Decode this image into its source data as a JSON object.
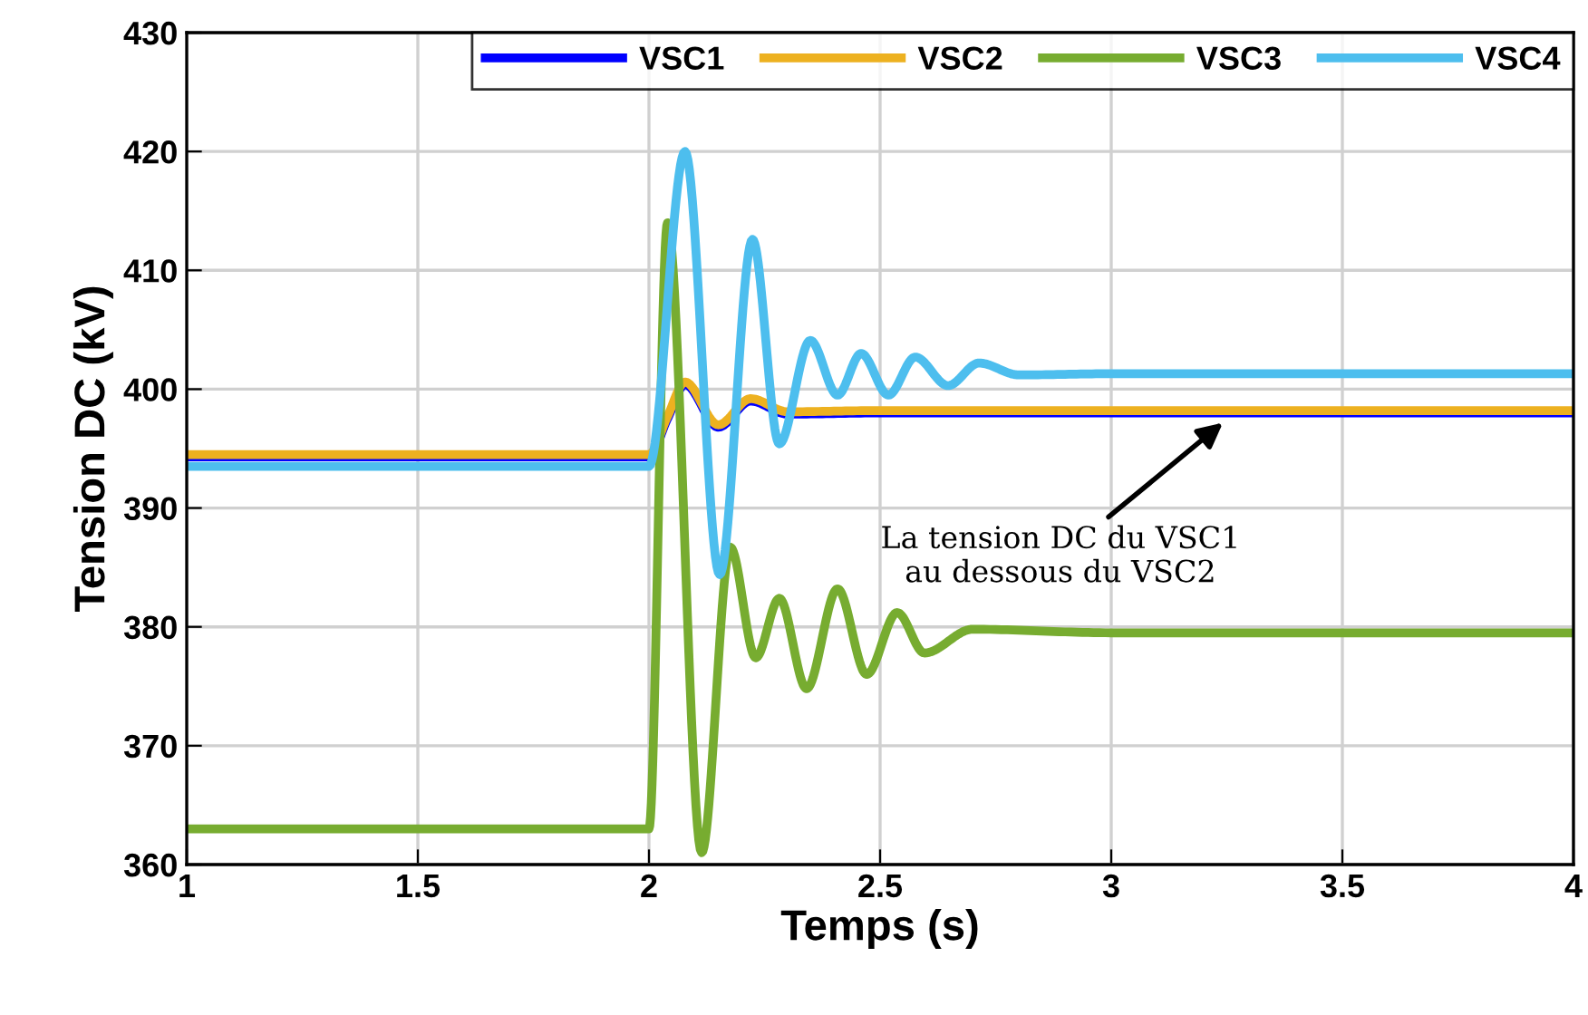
{
  "chart_data": {
    "type": "line",
    "xlabel": "Temps (s)",
    "ylabel": "Tension DC (kV)",
    "xlim": [
      1,
      4
    ],
    "ylim": [
      360,
      430
    ],
    "xticks": [
      1,
      1.5,
      2,
      2.5,
      3,
      3.5,
      4
    ],
    "yticks": [
      360,
      370,
      380,
      390,
      400,
      410,
      420,
      430
    ],
    "grid": true,
    "legend": "top right",
    "line_style": "solid",
    "marker": "none",
    "series": [
      {
        "name": "VSC1",
        "color": "#0000ff",
        "x": [
          1,
          2.0,
          2.04,
          2.078,
          2.15,
          2.22,
          2.3,
          2.5,
          3,
          4
        ],
        "values": [
          394.3,
          394.3,
          397.5,
          400.4,
          396.8,
          399.0,
          397.9,
          398.0,
          398.0,
          398.0
        ]
      },
      {
        "name": "VSC2",
        "color": "#edb120",
        "x": [
          1,
          2.0,
          2.04,
          2.078,
          2.15,
          2.22,
          2.3,
          2.5,
          3,
          4
        ],
        "values": [
          394.5,
          394.5,
          397.7,
          400.6,
          397.0,
          399.2,
          398.1,
          398.2,
          398.2,
          398.2
        ]
      },
      {
        "name": "VSC3",
        "color": "#77ac30",
        "x": [
          1,
          2.0,
          2.04,
          2.114,
          2.176,
          2.231,
          2.282,
          2.341,
          2.408,
          2.471,
          2.537,
          2.596,
          2.7,
          3,
          4
        ],
        "values": [
          363,
          363,
          414,
          361,
          386.7,
          377.4,
          382.4,
          374.8,
          383.2,
          376,
          381.2,
          377.8,
          379.8,
          379.5,
          379.5
        ]
      },
      {
        "name": "VSC4",
        "color": "#4dbeee",
        "x": [
          1,
          2.0,
          2.078,
          2.153,
          2.224,
          2.282,
          2.349,
          2.408,
          2.459,
          2.518,
          2.576,
          2.647,
          2.714,
          2.8,
          3,
          4
        ],
        "values": [
          393.5,
          393.5,
          420,
          384.4,
          412.6,
          395.4,
          404.1,
          399.5,
          403,
          399.5,
          402.7,
          400.3,
          402.2,
          401.2,
          401.3,
          401.3
        ]
      }
    ],
    "annotations": [
      "La tension DC du VSC1\nau dessous du VSC2"
    ]
  }
}
